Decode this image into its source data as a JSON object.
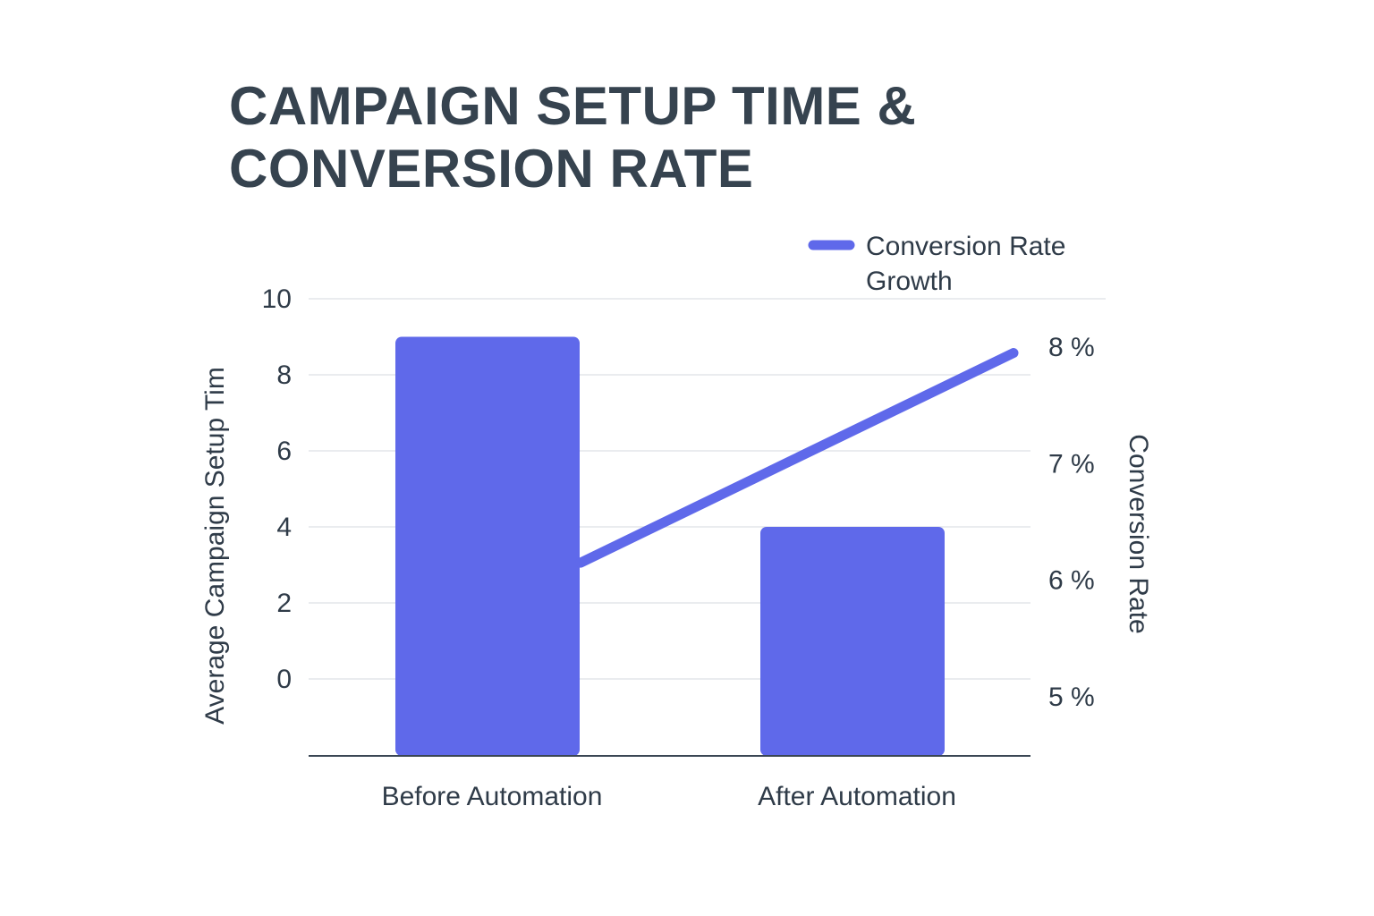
{
  "chart_data": {
    "type": "bar",
    "title": [
      "CAMPAIGN SETUP TIME &",
      "CONVERSION RATE"
    ],
    "categories": [
      "Before Automation",
      "After Automation"
    ],
    "series": [
      {
        "type": "bar",
        "axis": "left",
        "values": [
          9,
          4
        ]
      },
      {
        "type": "line",
        "axis": "right",
        "name": "Conversion Rate Growth",
        "values": [
          6.15,
          7.95
        ]
      }
    ],
    "ylabel": "Average Campaign Setup Tim",
    "ylabel_right": "Conversion Rate",
    "yticks": [
      "0",
      "2",
      "4",
      "6",
      "8",
      "10"
    ],
    "ylim": [
      0,
      10
    ],
    "yticks_right": [
      "5 %",
      "6 %",
      "7 %",
      "8 %"
    ],
    "ylim_right": [
      5,
      8.5
    ],
    "legend": {
      "labels": [
        "Conversion Rate",
        "Growth"
      ],
      "position": "top-right"
    },
    "grid": true,
    "colors": {
      "bar": "#5f69ea",
      "line": "#5f69ea",
      "grid": "#e4e6ea",
      "axis": "#3a4654"
    }
  }
}
